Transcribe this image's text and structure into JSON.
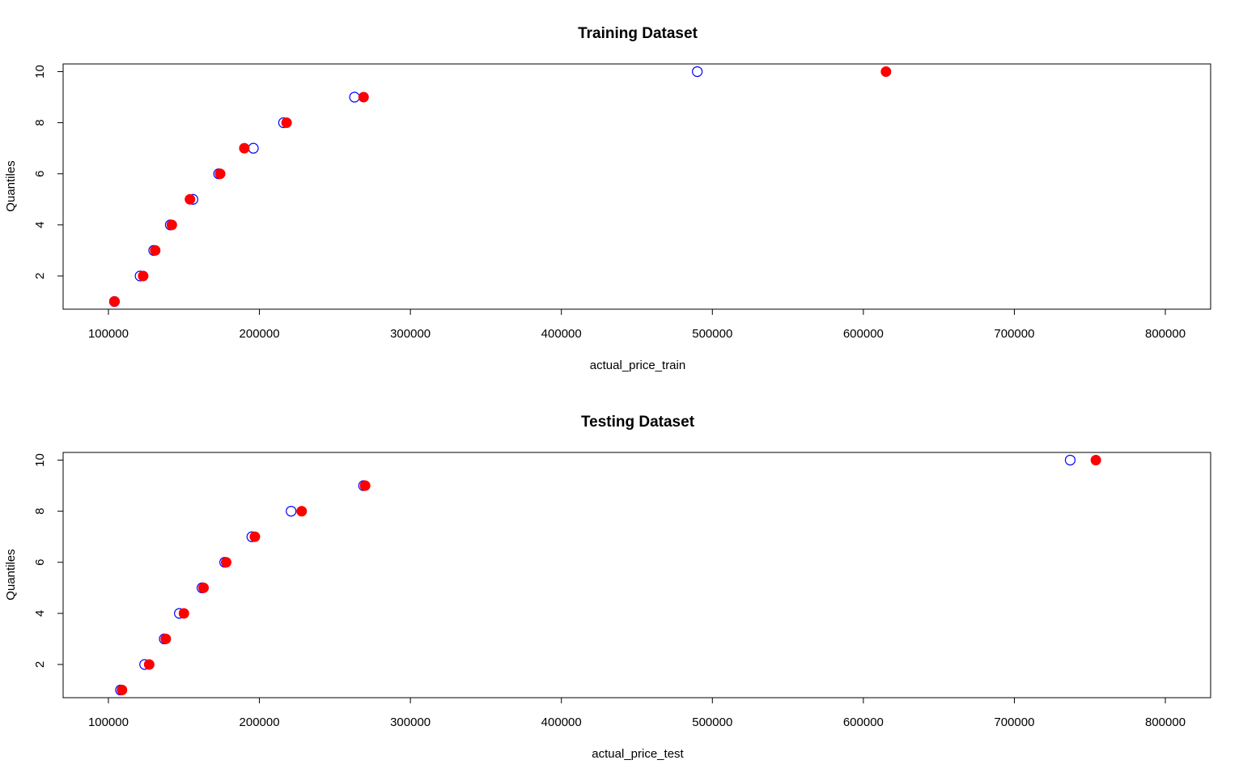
{
  "chart_data": [
    {
      "type": "scatter",
      "title": "Training Dataset",
      "xlabel": "actual_price_train",
      "ylabel": "Quantiles",
      "xlim": [
        70000,
        830000
      ],
      "ylim": [
        0.7,
        10.3
      ],
      "x_ticks": [
        100000,
        200000,
        300000,
        400000,
        500000,
        600000,
        700000,
        800000
      ],
      "x_tick_labels": [
        "100000",
        "200000",
        "300000",
        "400000",
        "500000",
        "600000",
        "700000",
        "800000"
      ],
      "y_ticks": [
        2,
        4,
        6,
        8,
        10
      ],
      "y_tick_labels": [
        "2",
        "4",
        "6",
        "8",
        "10"
      ],
      "grid": false,
      "legend": "none",
      "series": [
        {
          "marker": "open-circle",
          "color": "#0000ff",
          "x": [
            104000,
            121000,
            130000,
            141000,
            156000,
            173000,
            196000,
            216000,
            263000,
            490000
          ],
          "y": [
            1,
            2,
            3,
            4,
            5,
            6,
            7,
            8,
            9,
            10
          ]
        },
        {
          "marker": "filled-circle",
          "color": "#ff0000",
          "x": [
            104000,
            123000,
            131000,
            142000,
            154000,
            174000,
            190000,
            218000,
            269000,
            615000
          ],
          "y": [
            1,
            2,
            3,
            4,
            5,
            6,
            7,
            8,
            9,
            10
          ]
        }
      ]
    },
    {
      "type": "scatter",
      "title": "Testing Dataset",
      "xlabel": "actual_price_test",
      "ylabel": "Quantiles",
      "xlim": [
        70000,
        830000
      ],
      "ylim": [
        0.7,
        10.3
      ],
      "x_ticks": [
        100000,
        200000,
        300000,
        400000,
        500000,
        600000,
        700000,
        800000
      ],
      "x_tick_labels": [
        "100000",
        "200000",
        "300000",
        "400000",
        "500000",
        "600000",
        "700000",
        "800000"
      ],
      "y_ticks": [
        2,
        4,
        6,
        8,
        10
      ],
      "y_tick_labels": [
        "2",
        "4",
        "6",
        "8",
        "10"
      ],
      "grid": false,
      "legend": "none",
      "series": [
        {
          "marker": "open-circle",
          "color": "#0000ff",
          "x": [
            108000,
            124000,
            137000,
            147000,
            162000,
            177000,
            195000,
            221000,
            269000,
            737000
          ],
          "y": [
            1,
            2,
            3,
            4,
            5,
            6,
            7,
            8,
            9,
            10
          ]
        },
        {
          "marker": "filled-circle",
          "color": "#ff0000",
          "x": [
            109000,
            127000,
            138000,
            150000,
            163000,
            178000,
            197000,
            228000,
            270000,
            754000
          ],
          "y": [
            1,
            2,
            3,
            4,
            5,
            6,
            7,
            8,
            9,
            10
          ]
        }
      ]
    }
  ]
}
